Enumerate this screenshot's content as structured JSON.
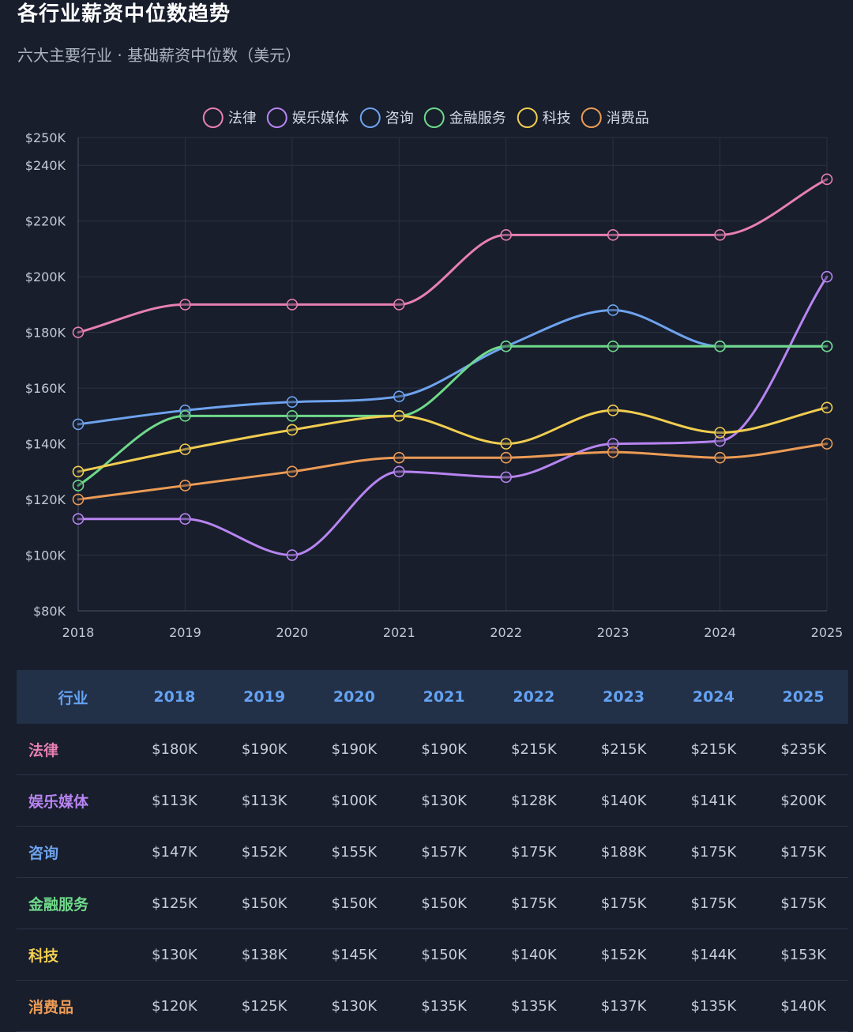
{
  "header": {
    "title": "各行业薪资中位数趋势",
    "subtitle": "六大主要行业 · 基础薪资中位数（美元）"
  },
  "chart_data": {
    "type": "line",
    "title": "各行业薪资中位数趋势",
    "subtitle": "六大主要行业 · 基础薪资中位数（美元）",
    "xlabel": "",
    "ylabel": "",
    "categories": [
      "2018",
      "2019",
      "2020",
      "2021",
      "2022",
      "2023",
      "2024",
      "2025"
    ],
    "ylim": [
      80,
      250
    ],
    "yticks": [
      80,
      100,
      120,
      140,
      160,
      180,
      200,
      220,
      240,
      250
    ],
    "ytick_labels": [
      "$80K",
      "$100K",
      "$120K",
      "$140K",
      "$160K",
      "$180K",
      "$200K",
      "$220K",
      "$240K",
      "$250K"
    ],
    "grid": true,
    "legend_position": "top-center",
    "series": [
      {
        "name": "法律",
        "color": "#e77fb3",
        "values": [
          180,
          190,
          190,
          190,
          215,
          215,
          215,
          235
        ]
      },
      {
        "name": "娱乐媒体",
        "color": "#b784f0",
        "values": [
          113,
          113,
          100,
          130,
          128,
          140,
          141,
          200
        ]
      },
      {
        "name": "咨询",
        "color": "#6ea3ee",
        "values": [
          147,
          152,
          155,
          157,
          175,
          188,
          175,
          175
        ]
      },
      {
        "name": "金融服务",
        "color": "#6fd98a",
        "values": [
          125,
          150,
          150,
          150,
          175,
          175,
          175,
          175
        ]
      },
      {
        "name": "科技",
        "color": "#f1cd50",
        "values": [
          130,
          138,
          145,
          150,
          140,
          152,
          144,
          153
        ]
      },
      {
        "name": "消费品",
        "color": "#ec9b55",
        "values": [
          120,
          125,
          130,
          135,
          135,
          137,
          135,
          140
        ]
      }
    ]
  },
  "table": {
    "header": [
      "行业",
      "2018",
      "2019",
      "2020",
      "2021",
      "2022",
      "2023",
      "2024",
      "2025"
    ],
    "rows": [
      {
        "name": "法律",
        "color": "#e77fb3",
        "cells": [
          "$180K",
          "$190K",
          "$190K",
          "$190K",
          "$215K",
          "$215K",
          "$215K",
          "$235K"
        ]
      },
      {
        "name": "娱乐媒体",
        "color": "#b784f0",
        "cells": [
          "$113K",
          "$113K",
          "$100K",
          "$130K",
          "$128K",
          "$140K",
          "$141K",
          "$200K"
        ]
      },
      {
        "name": "咨询",
        "color": "#6ea3ee",
        "cells": [
          "$147K",
          "$152K",
          "$155K",
          "$157K",
          "$175K",
          "$188K",
          "$175K",
          "$175K"
        ]
      },
      {
        "name": "金融服务",
        "color": "#6fd98a",
        "cells": [
          "$125K",
          "$150K",
          "$150K",
          "$150K",
          "$175K",
          "$175K",
          "$175K",
          "$175K"
        ]
      },
      {
        "name": "科技",
        "color": "#f1cd50",
        "cells": [
          "$130K",
          "$138K",
          "$145K",
          "$150K",
          "$140K",
          "$152K",
          "$144K",
          "$153K"
        ]
      },
      {
        "name": "消费品",
        "color": "#ec9b55",
        "cells": [
          "$120K",
          "$125K",
          "$130K",
          "$135K",
          "$135K",
          "$137K",
          "$135K",
          "$140K"
        ]
      }
    ]
  }
}
